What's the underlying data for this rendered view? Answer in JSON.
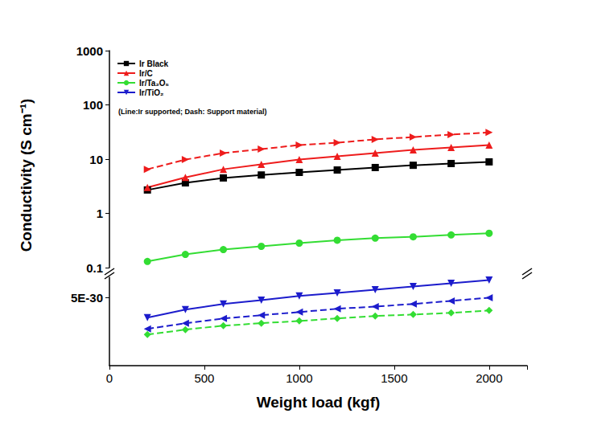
{
  "chart_data": {
    "type": "line",
    "xlabel": "Weight load (kgf)",
    "ylabel": "Conductivity (S cm⁻¹)",
    "annotation": "(Line:Ir supported; Dash: Support material)",
    "x": [
      200,
      400,
      600,
      800,
      1000,
      1200,
      1400,
      1600,
      1800,
      2000
    ],
    "xlim": [
      0,
      2200
    ],
    "xticks": [
      0,
      500,
      1000,
      1500,
      2000
    ],
    "log": "y",
    "ylim": [
      0.1,
      1000
    ],
    "yticks": [
      0.1,
      1,
      10,
      100,
      1000
    ],
    "y2lim": [
      0,
      6.5e-30
    ],
    "y2ticks": [
      {
        "value": 5e-30,
        "label": "5E-30"
      }
    ],
    "legend": "upper left",
    "grid": false,
    "series": [
      {
        "name": "Ir Black",
        "color": "#000000",
        "marker": "square",
        "line_style": "solid",
        "values": [
          2.7,
          3.65,
          4.5,
          5.1,
          5.7,
          6.3,
          7.0,
          7.7,
          8.3,
          8.9
        ]
      },
      {
        "name": "Ir/C",
        "color": "#ee1c1c",
        "marker": "triangle-up",
        "line_style": "solid",
        "values": [
          3.0,
          4.6,
          6.5,
          8.0,
          9.8,
          11.3,
          12.9,
          14.8,
          16.4,
          18.2
        ]
      },
      {
        "color": "#ee1c1c",
        "marker": "triangle-right",
        "line_style": "dashed",
        "values": [
          6.5,
          9.8,
          12.9,
          15.3,
          18.2,
          20.1,
          23.1,
          25.5,
          28.4,
          31.0
        ]
      },
      {
        "name": "Ir/Ta₂O₅",
        "color": "#33dd33",
        "marker": "circle",
        "line_style": "solid",
        "values": [
          0.13,
          0.175,
          0.215,
          0.247,
          0.283,
          0.32,
          0.35,
          0.37,
          0.4,
          0.43
        ]
      },
      {
        "color": "#33dd33",
        "marker": "diamond",
        "line_style": "dashed",
        "axis": "y2",
        "values": [
          2.29e-30,
          2.65e-30,
          2.94e-30,
          3.12e-30,
          3.29e-30,
          3.47e-30,
          3.65e-30,
          3.76e-30,
          3.88e-30,
          4.06e-30
        ]
      },
      {
        "name": "Ir/TiO₂",
        "color": "#1c1ccc",
        "marker": "triangle-down",
        "line_style": "solid",
        "axis": "y2",
        "values": [
          3.53e-30,
          4.12e-30,
          4.53e-30,
          4.82e-30,
          5.12e-30,
          5.35e-30,
          5.59e-30,
          5.82e-30,
          6.06e-30,
          6.29e-30
        ]
      },
      {
        "color": "#1c1ccc",
        "marker": "triangle-left",
        "line_style": "dashed",
        "axis": "y2",
        "values": [
          2.71e-30,
          3.12e-30,
          3.47e-30,
          3.71e-30,
          3.94e-30,
          4.18e-30,
          4.35e-30,
          4.53e-30,
          4.76e-30,
          5e-30
        ]
      }
    ]
  }
}
